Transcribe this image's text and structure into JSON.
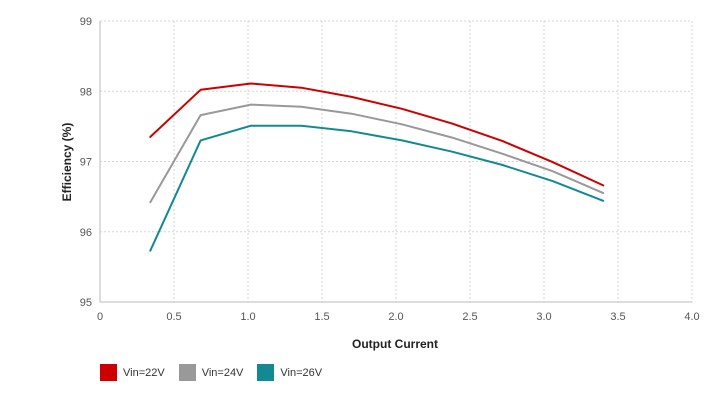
{
  "chart_data": {
    "type": "line",
    "title": "",
    "xlabel": "Output Current",
    "ylabel": "Efficiency (%)",
    "xlim": [
      0,
      4.0
    ],
    "ylim": [
      95,
      99
    ],
    "x_ticks": [
      "0",
      "0.5",
      "1.0",
      "1.5",
      "2.0",
      "2.5",
      "3.0",
      "3.5",
      "4.0"
    ],
    "y_ticks": [
      "95",
      "96",
      "97",
      "98",
      "99"
    ],
    "grid": true,
    "legend_position": "bottom-left",
    "x": [
      0.34,
      0.68,
      1.02,
      1.36,
      1.7,
      2.04,
      2.38,
      2.72,
      3.06,
      3.4
    ],
    "series": [
      {
        "name": "Vin=22V",
        "color": "#cc0000",
        "values": [
          97.35,
          98.02,
          98.11,
          98.05,
          97.92,
          97.75,
          97.54,
          97.29,
          96.99,
          96.66
        ]
      },
      {
        "name": "Vin=24V",
        "color": "#999999",
        "values": [
          96.42,
          97.66,
          97.81,
          97.78,
          97.68,
          97.53,
          97.34,
          97.11,
          96.86,
          96.55
        ]
      },
      {
        "name": "Vin=26V",
        "color": "#138a93",
        "values": [
          95.73,
          97.3,
          97.51,
          97.51,
          97.43,
          97.3,
          97.14,
          96.95,
          96.72,
          96.44
        ]
      }
    ]
  }
}
